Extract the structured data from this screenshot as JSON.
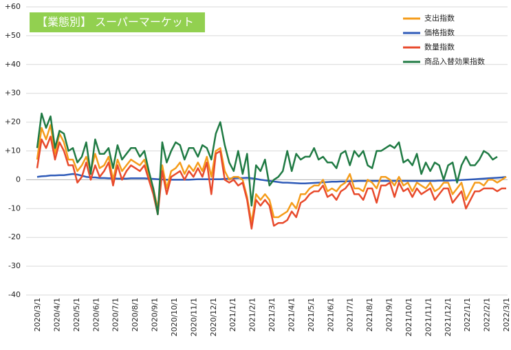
{
  "chart_data": {
    "type": "line",
    "title": "【業態別】 スーパーマーケット",
    "xlabel": "",
    "ylabel": "",
    "ylim": [
      -40,
      60
    ],
    "y_ticks": [
      "+60",
      "+50",
      "+40",
      "+30",
      "+20",
      "+10",
      "0",
      "-10",
      "-20",
      "-30",
      "-40"
    ],
    "x_tick_labels": [
      "2020/3/1",
      "2020/4/1",
      "2020/5/1",
      "2020/6/1",
      "2020/7/1",
      "2020/8/1",
      "2020/9/1",
      "2020/10/1",
      "2020/11/1",
      "2020/12/1",
      "2021/1/1",
      "2021/2/1",
      "2021/3/1",
      "2021/4/1",
      "2021/5/1",
      "2021/6/1",
      "2021/7/1",
      "2021/8/1",
      "2021/9/1",
      "2021/10/1",
      "2021/11/1",
      "2021/12/1",
      "2022/1/1",
      "2022/2/1",
      "2022/3/1"
    ],
    "grid": "horizontal",
    "legend_position": "top-right",
    "title_bg_color": "#92d050",
    "series": [
      {
        "name": "支出指数",
        "color": "#f59c1a",
        "values": [
          7,
          18,
          14,
          19,
          9,
          16,
          13,
          7,
          7,
          3,
          5,
          8,
          3,
          9,
          4,
          5,
          8,
          0,
          7,
          3,
          5,
          7,
          6,
          5,
          7,
          2,
          -3,
          -10,
          5,
          -3,
          3,
          4,
          6,
          2,
          5,
          3,
          6,
          3,
          8,
          1,
          10,
          11,
          3,
          0,
          1,
          1,
          0,
          -6,
          -15,
          -5,
          -7,
          -5,
          -7,
          -13,
          -13,
          -12,
          -11,
          -8,
          -10,
          -5,
          -5,
          -3,
          -2,
          -2,
          0,
          -4,
          -3,
          -4,
          -2,
          -1,
          2,
          -3,
          -3,
          -4,
          0,
          -1,
          -3,
          1,
          1,
          0,
          -2,
          1,
          -2,
          -1,
          -4,
          -1,
          -2,
          -3,
          -1,
          -4,
          -3,
          -1,
          -1,
          -5,
          -3,
          -1,
          -7,
          -4,
          -1,
          -1,
          -2,
          0,
          0,
          -1,
          0,
          1
        ]
      },
      {
        "name": "価格指数",
        "color": "#2e5ab8",
        "values": [
          1,
          1.2,
          1.3,
          1.5,
          1.5,
          1.6,
          1.6,
          1.8,
          2,
          1.8,
          1.4,
          1.0,
          0.8,
          0.8,
          0.6,
          0.6,
          0.5,
          0.5,
          0.4,
          0.4,
          0.4,
          0.5,
          0.5,
          0.5,
          0.5,
          0.4,
          0.3,
          0.2,
          0.1,
          0,
          0,
          0,
          0,
          0,
          0,
          0.1,
          0.2,
          0.2,
          0.2,
          0.2,
          0.2,
          0.2,
          0.3,
          0.4,
          0.5,
          0.6,
          0.6,
          0.7,
          0.5,
          0.3,
          0,
          -0.2,
          -0.4,
          -0.6,
          -0.8,
          -1,
          -1,
          -1.1,
          -1.2,
          -1.3,
          -1.3,
          -1.2,
          -1.1,
          -1,
          -0.9,
          -0.8,
          -0.7,
          -0.7,
          -0.6,
          -0.6,
          -0.5,
          -0.5,
          -0.4,
          -0.4,
          -0.4,
          -0.4,
          -0.4,
          -0.4,
          -0.4,
          -0.4,
          -0.4,
          -0.4,
          -0.4,
          -0.4,
          -0.4,
          -0.4,
          -0.4,
          -0.4,
          -0.4,
          -0.4,
          -0.3,
          -0.3,
          -0.3,
          -0.2,
          -0.2,
          -0.1,
          0,
          0.1,
          0.2,
          0.3,
          0.4,
          0.5,
          0.6,
          0.7,
          0.8,
          1
        ]
      },
      {
        "name": "数量指数",
        "color": "#e84a2c",
        "values": [
          4,
          14,
          11,
          15,
          7,
          13,
          10,
          5,
          5,
          -1,
          1,
          6,
          0,
          5,
          1,
          3,
          6,
          -2,
          5,
          0,
          3,
          5,
          4,
          3,
          5,
          0,
          -5,
          -12,
          3,
          -5,
          1,
          2,
          3,
          0,
          3,
          1,
          4,
          1,
          6,
          -5,
          9,
          10,
          0,
          -1,
          0,
          -2,
          -1,
          -7,
          -17,
          -7,
          -9,
          -7,
          -9,
          -16,
          -15,
          -15,
          -14,
          -11,
          -13,
          -8,
          -7,
          -5,
          -4,
          -4,
          -2,
          -6,
          -5,
          -7,
          -4,
          -3,
          -1,
          -5,
          -5,
          -7,
          -3,
          -3,
          -8,
          -2,
          -2,
          -1,
          -6,
          -1,
          -4,
          -3,
          -6,
          -3,
          -5,
          -4,
          -3,
          -7,
          -5,
          -3,
          -3,
          -8,
          -6,
          -4,
          -10,
          -7,
          -4,
          -4,
          -3,
          -3,
          -3,
          -4,
          -3,
          -3
        ]
      },
      {
        "name": "商品入替効果指数",
        "color": "#1f7a43",
        "values": [
          11,
          23,
          18,
          22,
          11,
          17,
          16,
          10,
          11,
          6,
          8,
          13,
          2,
          14,
          9,
          9,
          11,
          4,
          12,
          7,
          9,
          11,
          11,
          8,
          10,
          3,
          -3,
          -12,
          13,
          6,
          10,
          13,
          12,
          7,
          11,
          11,
          8,
          12,
          11,
          7,
          16,
          20,
          12,
          6,
          3,
          10,
          2,
          9,
          -9,
          5,
          3,
          7,
          -2,
          0,
          1,
          3,
          10,
          3,
          9,
          7,
          8,
          8,
          11,
          7,
          8,
          6,
          6,
          4,
          9,
          10,
          5,
          10,
          8,
          10,
          5,
          4,
          10,
          10,
          11,
          12,
          11,
          13,
          6,
          7,
          5,
          9,
          2,
          6,
          3,
          6,
          5,
          0,
          5,
          6,
          -1,
          5,
          8,
          5,
          5,
          7,
          10,
          9,
          7,
          8
        ]
      }
    ]
  }
}
